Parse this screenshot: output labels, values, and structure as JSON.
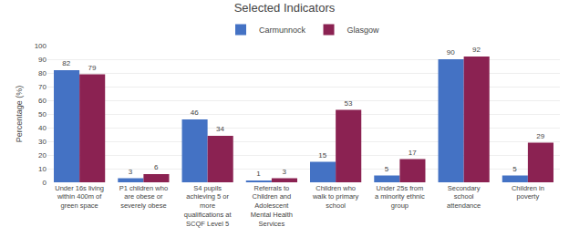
{
  "chart_data": {
    "type": "bar",
    "title": "Selected Indicators",
    "ylabel": "Percentage (%)",
    "categories": [
      "Under 16s living\nwithin 400m of\ngreen space",
      "P1 children who\nare obese or\nseverely obese",
      "S4 pupils\nachieving 5 or\nmore\nqualifications at\nSCQF Level 5",
      "Referrals to\nChildren and\nAdolescent\nMental Health\nServices",
      "Children who\nwalk to primary\nschool",
      "Under 25s from\na minority ethnic\ngroup",
      "Secondary\nschool\nattendance",
      "Children in\npoverty"
    ],
    "series": [
      {
        "name": "Carmunnock",
        "color": "#4472C4",
        "values": [
          82,
          3,
          46,
          1,
          15,
          5,
          90,
          5
        ]
      },
      {
        "name": "Glasgow",
        "color": "#8B2252",
        "values": [
          79,
          6,
          34,
          3,
          53,
          17,
          92,
          29
        ]
      }
    ],
    "ylim": [
      0,
      100
    ],
    "yticks": [
      0,
      10,
      20,
      30,
      40,
      50,
      60,
      70,
      80,
      90,
      100
    ],
    "grid": true,
    "legend": "top",
    "data_labels": true
  }
}
